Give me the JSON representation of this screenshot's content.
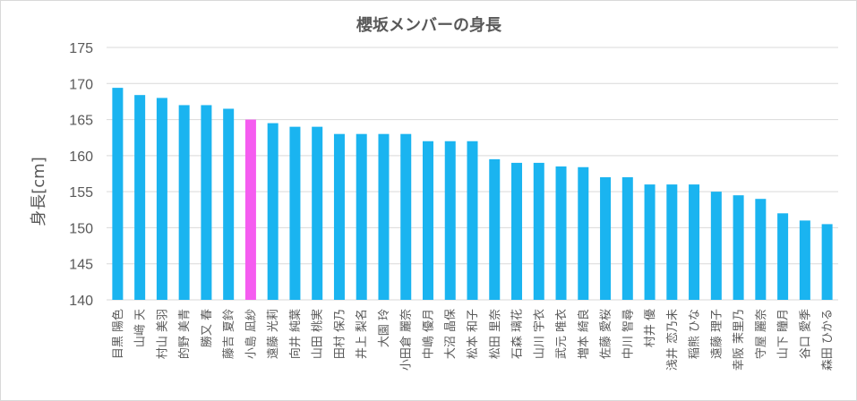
{
  "chart_data": {
    "type": "bar",
    "title": "櫻坂メンバーの身長",
    "ylabel": "身長[cm]",
    "xlabel": "",
    "ylim": [
      140,
      175
    ],
    "yticks": [
      140,
      145,
      150,
      155,
      160,
      165,
      170,
      175
    ],
    "grid": true,
    "bar_color": "#1ab4f0",
    "highlight_color": "#f55cf0",
    "highlight_category": "小島 凪紗",
    "categories": [
      "目黒 陽色",
      "山﨑 天",
      "村山 美羽",
      "的野 美青",
      "勝又 春",
      "藤吉 夏鈴",
      "小島 凪紗",
      "遠藤 光莉",
      "向井 純葉",
      "山田 桃実",
      "田村 保乃",
      "井上 梨名",
      "大園 玲",
      "小田倉 麗奈",
      "中嶋 優月",
      "大沼 晶保",
      "松本 和子",
      "松田 里奈",
      "石森 璃花",
      "山川 宇衣",
      "武元 唯衣",
      "増本 綺良",
      "佐藤 愛桜",
      "中川 智尋",
      "村井 優",
      "浅井 恋乃未",
      "稲熊 ひな",
      "遠藤 理子",
      "幸阪 茉里乃",
      "守屋 麗奈",
      "山下 瞳月",
      "谷口 愛季",
      "森田 ひかる"
    ],
    "values": [
      169.4,
      168.4,
      168,
      167,
      167,
      166.5,
      165,
      164.5,
      164,
      164,
      163,
      163,
      163,
      163,
      162,
      162,
      162,
      159.5,
      159,
      159,
      158.5,
      158.4,
      157,
      157,
      156,
      156,
      156,
      155,
      154.5,
      154,
      152,
      151,
      150.5
    ]
  }
}
